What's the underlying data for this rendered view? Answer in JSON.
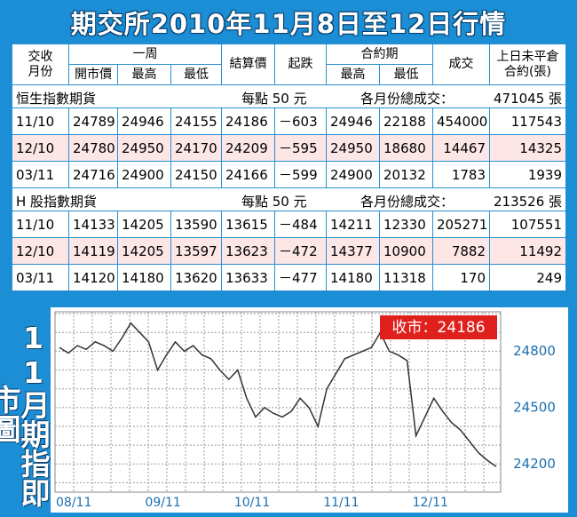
{
  "title": "期交所2010年11月8日至12日行情",
  "table": {
    "header": {
      "month": [
        "交收",
        "月份"
      ],
      "week": "一周",
      "settle": "結算價",
      "change": "起跌",
      "contract": "合約期",
      "volume": "成交",
      "oi": [
        "上日未平倉",
        "合約(張)"
      ],
      "sub": [
        "開市價",
        "最高",
        "最低",
        "最高",
        "最低"
      ]
    },
    "sections": [
      {
        "name": "恒生指數期貨",
        "unit": "每點 50 元",
        "total_label": "各月份總成交：",
        "total": "471045 張",
        "rows": [
          [
            "11/10",
            "24789",
            "24946",
            "24155",
            "24186",
            "－603",
            "24946",
            "22188",
            "454000",
            "117543"
          ],
          [
            "12/10",
            "24780",
            "24950",
            "24170",
            "24209",
            "－595",
            "24950",
            "18680",
            "14467",
            "14325"
          ],
          [
            "03/11",
            "24716",
            "24900",
            "24150",
            "24166",
            "－599",
            "24900",
            "20132",
            "1783",
            "1939"
          ]
        ]
      },
      {
        "name": "H 股指數期貨",
        "unit": "每點 50 元",
        "total_label": "各月份總成交：",
        "total": "213526 張",
        "rows": [
          [
            "11/10",
            "14133",
            "14205",
            "13590",
            "13615",
            "－484",
            "14211",
            "12330",
            "205271",
            "107551"
          ],
          [
            "12/10",
            "14119",
            "14205",
            "13597",
            "13623",
            "－472",
            "14377",
            "10900",
            "7882",
            "11492"
          ],
          [
            "03/11",
            "14120",
            "14180",
            "13620",
            "13633",
            "－477",
            "14180",
            "11318",
            "170",
            "249"
          ]
        ]
      }
    ]
  },
  "chart_data": {
    "type": "line",
    "side_title": "11月期指即市圖",
    "close_label": "收市：24186",
    "categories": [
      "08/11",
      null,
      null,
      null,
      null,
      null,
      null,
      null,
      null,
      null,
      "09/11",
      null,
      null,
      null,
      null,
      null,
      null,
      null,
      null,
      null,
      "10/11",
      null,
      null,
      null,
      null,
      null,
      null,
      null,
      null,
      null,
      "11/11",
      null,
      null,
      null,
      null,
      null,
      null,
      null,
      null,
      null,
      "12/11",
      null,
      null,
      null,
      null,
      null,
      null,
      null,
      null,
      null
    ],
    "series": [
      {
        "color": "#333333",
        "values": [
          24820,
          24790,
          24830,
          24810,
          24850,
          24830,
          24800,
          24870,
          24950,
          24900,
          24850,
          24700,
          24780,
          24850,
          24800,
          24830,
          24780,
          24760,
          24700,
          24650,
          24700,
          24550,
          24450,
          24500,
          24470,
          24450,
          24480,
          24550,
          24500,
          24400,
          24600,
          24680,
          24760,
          24780,
          24800,
          24820,
          24900,
          24800,
          24780,
          24750,
          24350,
          24450,
          24550,
          24480,
          24420,
          24380,
          24320,
          24260,
          24220,
          24186
        ]
      }
    ],
    "ylim": [
      24050,
      25010
    ],
    "yticks": [
      24200,
      24500,
      24800
    ],
    "ygrid": [
      24100,
      24200,
      24300,
      24400,
      24500,
      24600,
      24700,
      24800,
      24900,
      25000
    ],
    "grid": true
  }
}
